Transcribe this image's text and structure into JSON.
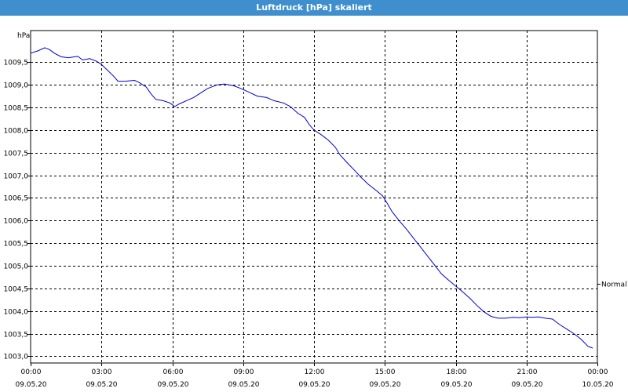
{
  "window": {
    "title": "Luftdruck [hPa] skaliert"
  },
  "chart_data": {
    "type": "line",
    "title": "Luftdruck [hPa] skaliert",
    "unit_label": "hPa",
    "ylim": [
      1002.85,
      1010.2
    ],
    "y_ticks": [
      1003.0,
      1003.5,
      1004.0,
      1004.5,
      1005.0,
      1005.5,
      1006.0,
      1006.5,
      1007.0,
      1007.5,
      1008.0,
      1008.5,
      1009.0,
      1009.5
    ],
    "y_tick_labels": [
      "1003,0",
      "1003,5",
      "1004,0",
      "1004,5",
      "1005,0",
      "1005,5",
      "1006,0",
      "1006,5",
      "1007,0",
      "1007,5",
      "1008,0",
      "1008,5",
      "1009,0",
      "1009,5"
    ],
    "x_unit": "hours since 09.05.20 00:00",
    "xlim": [
      0,
      24
    ],
    "x_ticks": [
      0,
      3,
      6,
      9,
      12,
      15,
      18,
      21,
      24
    ],
    "x_tick_labels": [
      {
        "time": "00:00",
        "date": "09.05.20"
      },
      {
        "time": "03:00",
        "date": "09.05.20"
      },
      {
        "time": "06:00",
        "date": "09.05.20"
      },
      {
        "time": "09:00",
        "date": "09.05.20"
      },
      {
        "time": "12:00",
        "date": "09.05.20"
      },
      {
        "time": "15:00",
        "date": "09.05.20"
      },
      {
        "time": "18:00",
        "date": "09.05.20"
      },
      {
        "time": "21:00",
        "date": "09.05.20"
      },
      {
        "time": "00:00",
        "date": "10.05.20"
      }
    ],
    "grid": true,
    "legend": {
      "label": "Normal",
      "placement": "right",
      "value": 1004.6
    },
    "series": [
      {
        "color": "#0000cc",
        "x": [
          0,
          0.3,
          0.6,
          0.8,
          1.0,
          1.3,
          1.6,
          2.0,
          2.2,
          2.5,
          2.8,
          3.0,
          3.2,
          3.5,
          3.7,
          4.0,
          4.4,
          4.6,
          4.9,
          5.1,
          5.3,
          5.6,
          5.9,
          6.1,
          6.3,
          6.6,
          6.9,
          7.2,
          7.5,
          7.9,
          8.2,
          8.6,
          8.9,
          9.2,
          9.6,
          10.0,
          10.3,
          10.7,
          11.0,
          11.3,
          11.6,
          11.8,
          12.0,
          12.3,
          12.6,
          12.9,
          13.1,
          13.4,
          13.7,
          14.0,
          14.3,
          14.6,
          14.9,
          15.1,
          15.3,
          15.6,
          15.9,
          16.2,
          16.5,
          16.8,
          17.1,
          17.4,
          17.7,
          18.0,
          18.3,
          18.6,
          18.9,
          19.2,
          19.5,
          19.8,
          20.1,
          20.4,
          20.7,
          21.0,
          21.2,
          21.5,
          21.8,
          22.1,
          22.4,
          22.7,
          23.0,
          23.3,
          23.6,
          23.8
        ],
        "y": [
          1009.7,
          1009.75,
          1009.82,
          1009.78,
          1009.7,
          1009.62,
          1009.6,
          1009.63,
          1009.55,
          1009.58,
          1009.52,
          1009.45,
          1009.35,
          1009.2,
          1009.08,
          1009.08,
          1009.1,
          1009.05,
          1008.95,
          1008.8,
          1008.68,
          1008.65,
          1008.6,
          1008.52,
          1008.58,
          1008.65,
          1008.72,
          1008.82,
          1008.92,
          1009.0,
          1009.02,
          1008.98,
          1008.92,
          1008.85,
          1008.75,
          1008.72,
          1008.65,
          1008.6,
          1008.52,
          1008.38,
          1008.28,
          1008.12,
          1008.0,
          1007.9,
          1007.78,
          1007.62,
          1007.45,
          1007.28,
          1007.12,
          1006.95,
          1006.8,
          1006.68,
          1006.55,
          1006.38,
          1006.2,
          1006.0,
          1005.82,
          1005.62,
          1005.42,
          1005.22,
          1005.02,
          1004.82,
          1004.68,
          1004.55,
          1004.42,
          1004.28,
          1004.12,
          1003.98,
          1003.88,
          1003.84,
          1003.84,
          1003.86,
          1003.85,
          1003.87,
          1003.86,
          1003.87,
          1003.84,
          1003.82,
          1003.7,
          1003.6,
          1003.5,
          1003.38,
          1003.22,
          1003.18
        ]
      }
    ]
  }
}
